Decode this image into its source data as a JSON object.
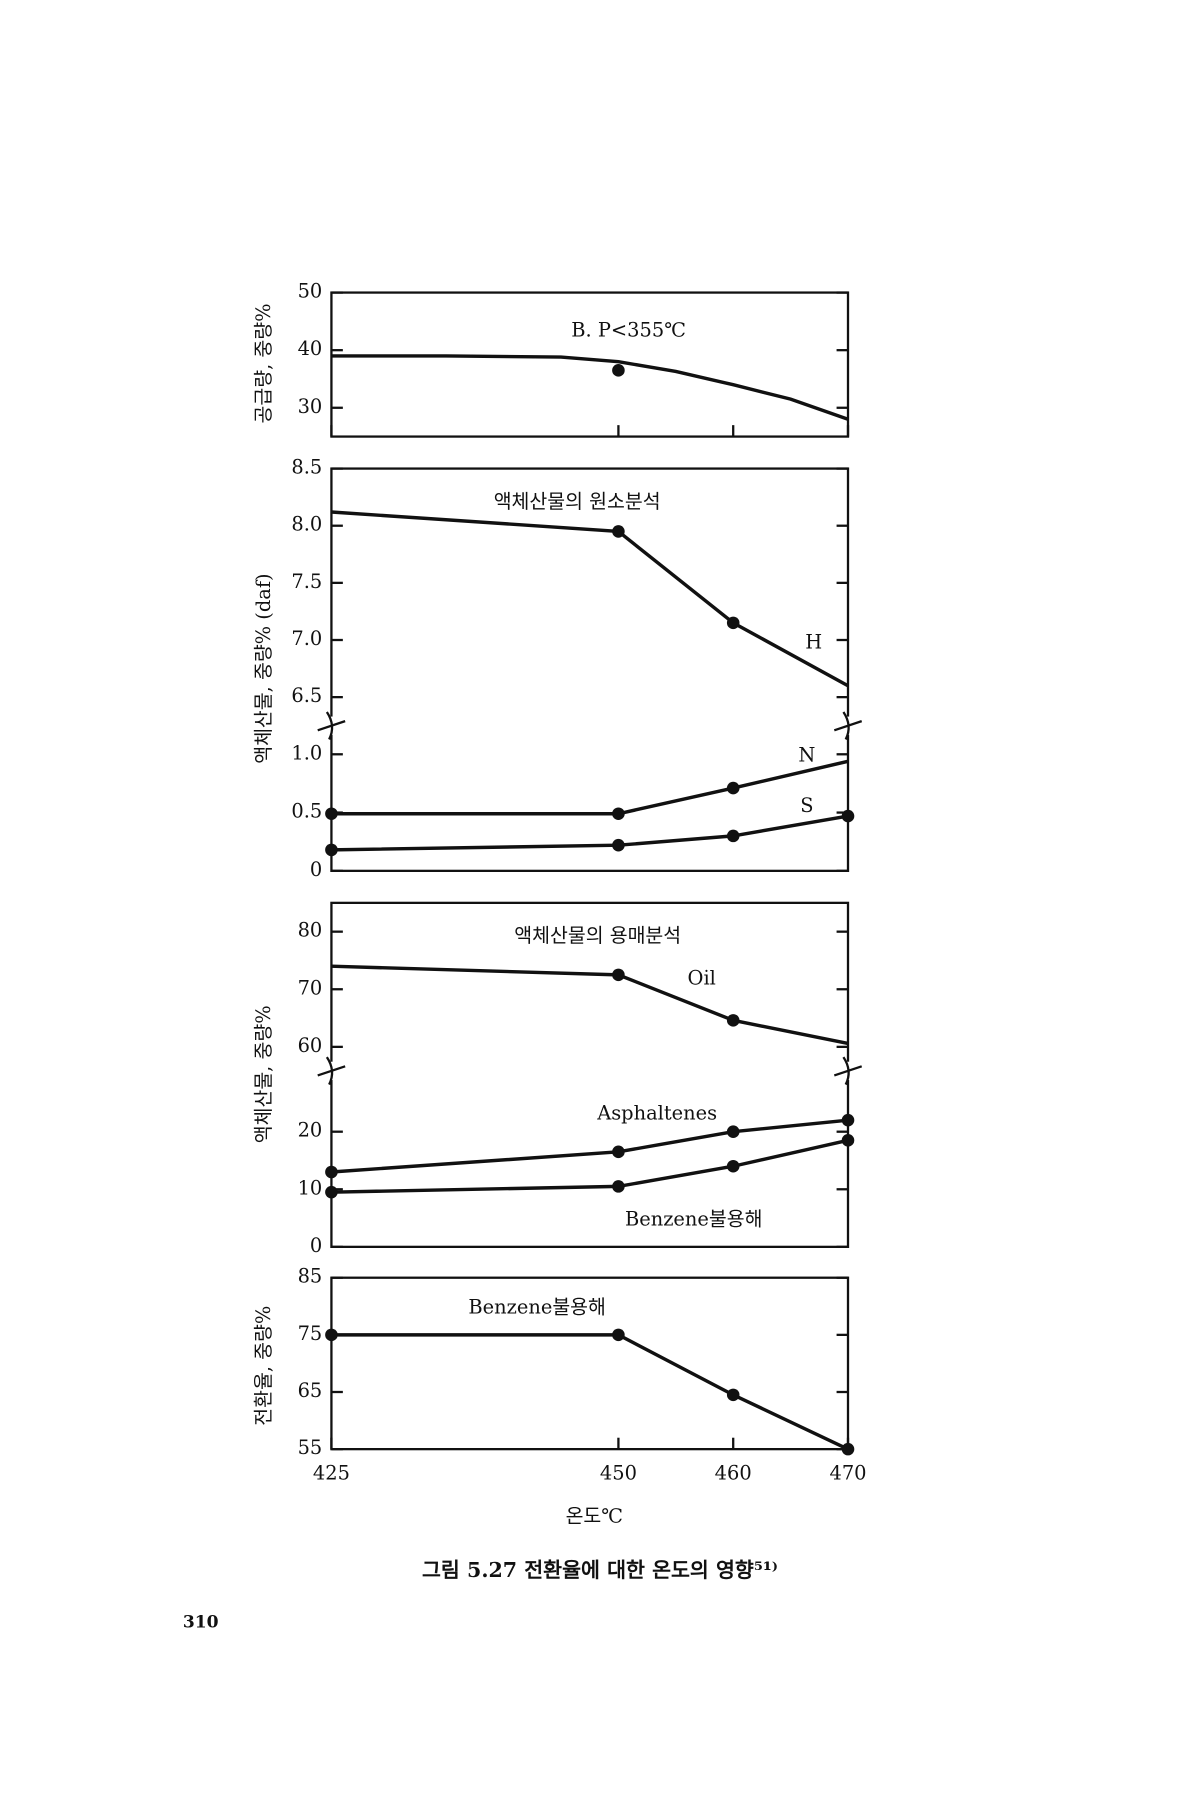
{
  "page_number": "310",
  "caption": "그림 5.27 전환율에 대한 온도의 영향⁵¹⁾",
  "chart_data": [
    {
      "type": "line",
      "ylabel": "공급량, 중량%",
      "x": [
        425,
        435,
        445,
        450,
        455,
        460,
        465,
        470
      ],
      "xlim": [
        425,
        470
      ],
      "ylim": [
        25,
        50
      ],
      "yticks": [
        30,
        40,
        50
      ],
      "color": "#111",
      "series": [
        {
          "name": "B. P<355℃",
          "values": [
            39,
            39,
            38.8,
            38,
            36.3,
            34,
            31.5,
            28
          ],
          "markers": [
            false,
            false,
            false,
            false,
            false,
            false,
            false,
            false
          ]
        },
        {
          "x": [
            450
          ],
          "values": [
            36.5
          ],
          "line": false,
          "markers": [
            true
          ]
        }
      ]
    },
    {
      "type": "line",
      "ylabel": "액체산물, 중량% (daf)",
      "title": "액체산물의 원소분석",
      "x": [
        425,
        450,
        460,
        470
      ],
      "xlim": [
        425,
        470
      ],
      "ylim": [
        6.5,
        8.5
      ],
      "yticks": [
        6.5,
        {
          "value": 7,
          "label": "7.0"
        },
        7.5,
        {
          "value": 8,
          "label": "8.0"
        },
        8.5
      ],
      "color": "#111",
      "series": [
        {
          "name": "H",
          "values": [
            8.12,
            7.95,
            7.15,
            6.6
          ],
          "markers": [
            false,
            true,
            true,
            false
          ]
        }
      ]
    },
    {
      "type": "line",
      "x": [
        425,
        450,
        460,
        470
      ],
      "xlim": [
        425,
        470
      ],
      "ylim": [
        0,
        1
      ],
      "yticks": [
        0,
        0.5,
        {
          "value": 1,
          "label": "1.0"
        }
      ],
      "color": "#111",
      "series": [
        {
          "name": "N",
          "values": [
            0.49,
            0.49,
            0.71,
            0.94
          ],
          "markers": [
            true,
            true,
            true,
            false
          ]
        },
        {
          "name": "S",
          "values": [
            0.18,
            0.22,
            0.3,
            0.47
          ],
          "markers": [
            true,
            true,
            true,
            true
          ]
        }
      ]
    },
    {
      "type": "line",
      "ylabel": "액체산물, 중량%",
      "title": "액체산물의 용매분석",
      "x": [
        425,
        450,
        460,
        470
      ],
      "xlim": [
        425,
        470
      ],
      "ylim": [
        60,
        85
      ],
      "yticks": [
        60,
        70,
        80
      ],
      "color": "#111",
      "series": [
        {
          "name": "Oil",
          "values": [
            74,
            72.5,
            64.6,
            60.6
          ],
          "markers": [
            false,
            true,
            true,
            false
          ]
        }
      ]
    },
    {
      "type": "line",
      "x": [
        425,
        450,
        460,
        470
      ],
      "xlim": [
        425,
        470
      ],
      "ylim": [
        0,
        26
      ],
      "yticks": [
        0,
        10,
        20
      ],
      "color": "#111",
      "series": [
        {
          "name": "Asphaltenes",
          "values": [
            13,
            16.5,
            20,
            22
          ],
          "markers": [
            true,
            true,
            true,
            true
          ]
        },
        {
          "name": "Benzene불용해",
          "values": [
            9.5,
            10.5,
            14,
            18.5
          ],
          "markers": [
            true,
            true,
            true,
            true
          ]
        }
      ]
    },
    {
      "type": "line",
      "ylabel": "전환율, 중량%",
      "xlabel": "온도℃",
      "x": [
        425,
        450,
        460,
        470
      ],
      "xlim": [
        425,
        470
      ],
      "xticks": [
        425,
        450,
        460,
        470
      ],
      "ylim": [
        55,
        85
      ],
      "yticks": [
        55,
        65,
        75,
        85
      ],
      "color": "#111",
      "series": [
        {
          "name": "Benzene불용해",
          "values": [
            75,
            75,
            64.5,
            55
          ],
          "markers": [
            true,
            true,
            true,
            true
          ]
        }
      ]
    }
  ]
}
